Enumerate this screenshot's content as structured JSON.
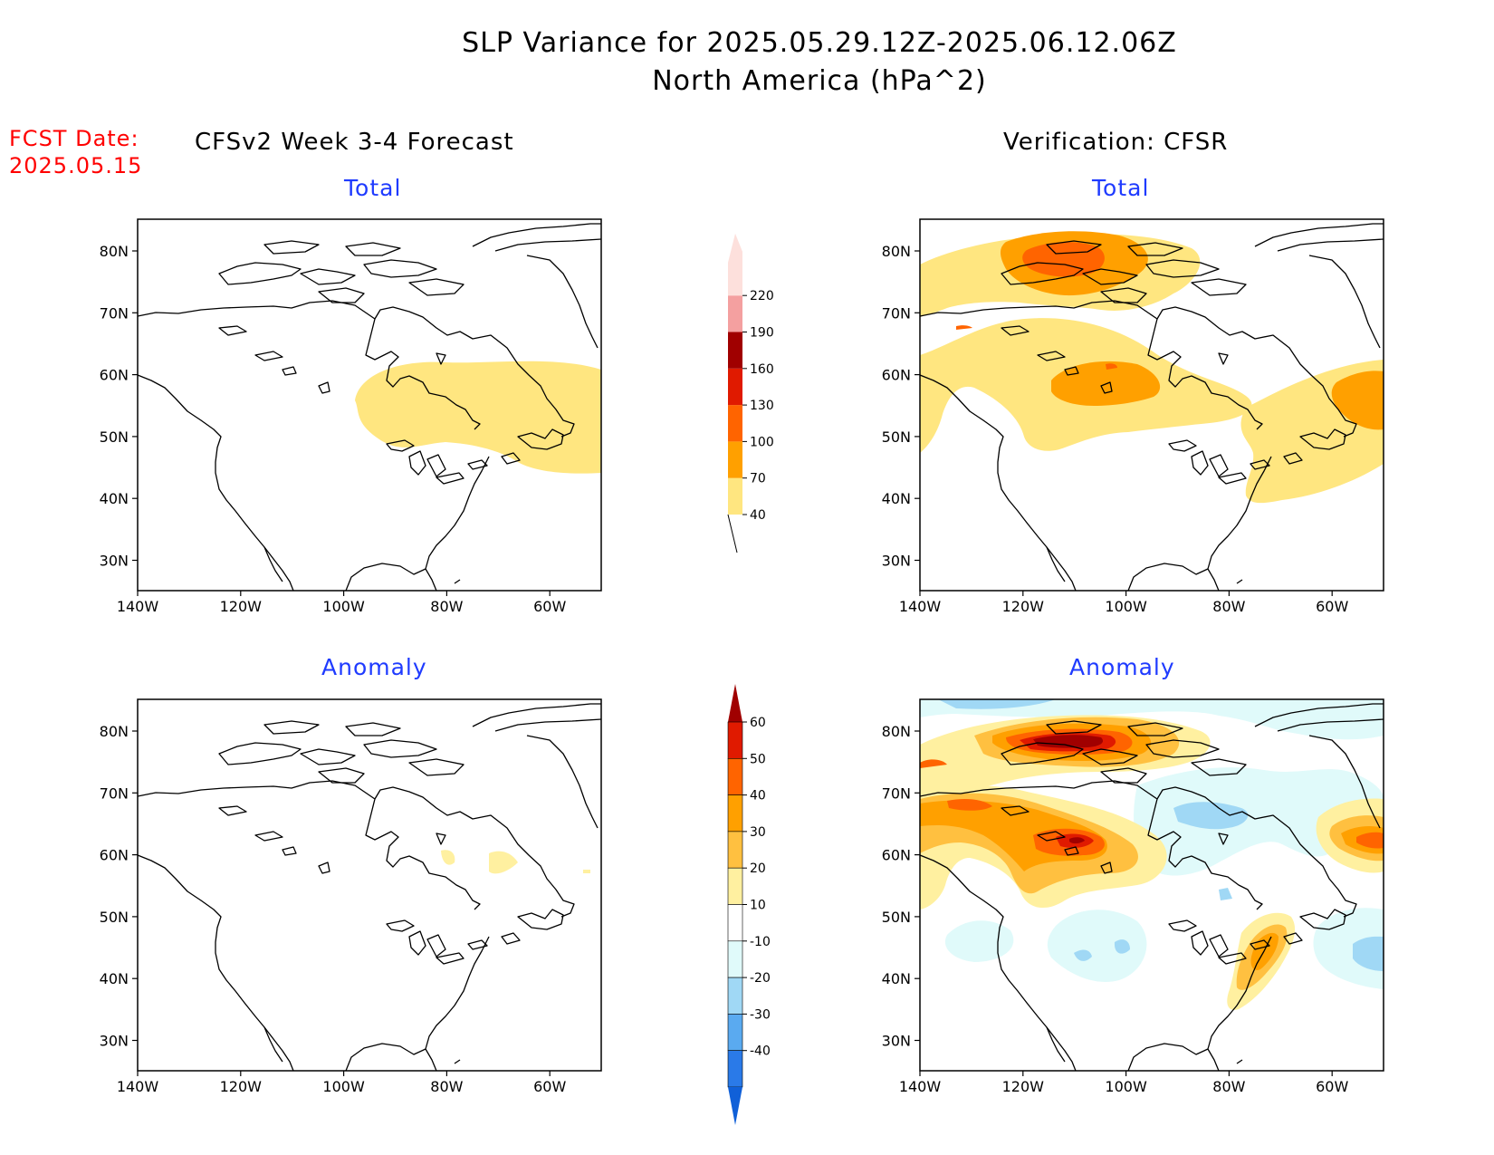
{
  "header": {
    "title_line1": "SLP Variance for 2025.05.29.12Z-2025.06.12.06Z",
    "title_line2": "North America (hPa^2)",
    "fcst_label": "FCST Date:",
    "fcst_date": "2025.05.15"
  },
  "columns": {
    "left": "CFSv2 Week 3-4 Forecast",
    "right": "Verification: CFSR"
  },
  "panels": {
    "fc_total": {
      "title": "Total"
    },
    "vf_total": {
      "title": "Total"
    },
    "fc_anom": {
      "title": "Anomaly"
    },
    "vf_anom": {
      "title": "Anomaly"
    }
  },
  "axes": {
    "lat_labels": [
      "80N",
      "70N",
      "60N",
      "50N",
      "40N",
      "30N"
    ],
    "lon_labels": [
      "140W",
      "120W",
      "100W",
      "80W",
      "60W"
    ]
  },
  "colorbars": {
    "total": {
      "labels": [
        "40",
        "70",
        "100",
        "130",
        "160",
        "190",
        "220"
      ],
      "colors": [
        "#ffe680",
        "#ffa000",
        "#ff6400",
        "#e01a00",
        "#a00000",
        "#f4a0a0",
        "#fde0dc"
      ]
    },
    "anomaly": {
      "labels": [
        "60",
        "50",
        "40",
        "30",
        "20",
        "10",
        "-10",
        "-20",
        "-30",
        "-40"
      ],
      "colors": [
        "#a00000",
        "#e01a00",
        "#ff6400",
        "#ffa000",
        "#ffc040",
        "#fff0a0",
        "#ffffff",
        "#e0fafa",
        "#a0d8f5",
        "#5aaaf0",
        "#2a7ae8",
        "#1060d8"
      ]
    }
  },
  "colors": {
    "title_blue": "#1f3bff",
    "fcst_red": "#ff0000"
  }
}
